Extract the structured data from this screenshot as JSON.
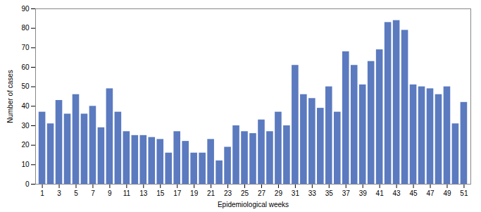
{
  "chart_data": {
    "type": "bar",
    "x": [
      1,
      2,
      3,
      4,
      5,
      6,
      7,
      8,
      9,
      10,
      11,
      12,
      13,
      14,
      15,
      16,
      17,
      18,
      19,
      20,
      21,
      22,
      23,
      24,
      25,
      26,
      27,
      28,
      29,
      30,
      31,
      32,
      33,
      34,
      35,
      36,
      37,
      38,
      39,
      40,
      41,
      42,
      43,
      44,
      45,
      46,
      47,
      48,
      49,
      50,
      51
    ],
    "values": [
      37,
      31,
      43,
      36,
      46,
      36,
      40,
      29,
      49,
      37,
      27,
      25,
      25,
      24,
      23,
      16,
      27,
      22,
      16,
      16,
      23,
      12,
      19,
      30,
      27,
      26,
      33,
      27,
      37,
      30,
      61,
      46,
      44,
      39,
      50,
      37,
      68,
      61,
      51,
      63,
      69,
      83,
      84,
      79,
      51,
      50,
      49,
      46,
      50,
      31,
      42
    ],
    "color": "#5b7abf",
    "xlabel": "Epidemiological weeks",
    "ylabel": "Number of cases",
    "xlim": [
      0.2,
      51.8
    ],
    "xticks": [
      1,
      3,
      5,
      7,
      9,
      11,
      13,
      15,
      17,
      19,
      21,
      23,
      25,
      27,
      29,
      31,
      33,
      35,
      37,
      39,
      41,
      43,
      45,
      47,
      49,
      51
    ],
    "ylim": [
      0,
      90
    ],
    "yticks": [
      0,
      10,
      20,
      30,
      40,
      50,
      60,
      70,
      80,
      90
    ],
    "grid": false
  }
}
